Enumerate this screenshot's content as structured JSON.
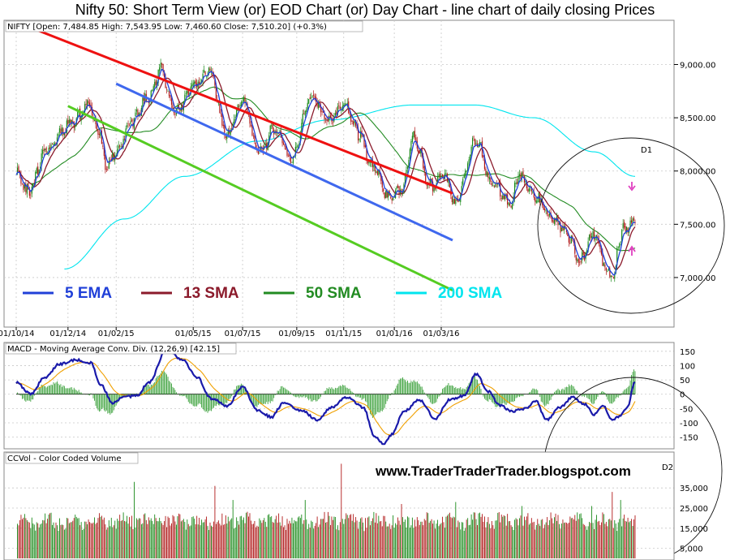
{
  "page_title": "Nifty 50: Short Term View (or) EOD Chart (or) Day Chart - line chart of daily closing Prices",
  "watermark": "www.TraderTraderTrader.blogspot.com",
  "colors": {
    "ema5": "#2040d8",
    "sma13": "#8b1a2b",
    "sma50": "#228b22",
    "sma200": "#00e5ee",
    "upper_channel": "#ee1111",
    "middle_channel": "#3f68ee",
    "lower_channel": "#55cc22",
    "candle_up": "#1a8a1a",
    "candle_down": "#b01818",
    "macd_line": "#1a1aaa",
    "signal_line": "#f0a000",
    "histogram": "#3aa03a",
    "arrow": "#e040c0"
  },
  "chart_data": [
    {
      "type": "candlestick",
      "title": "NIFTY [Open: 7,484.85 High: 7,543.95 Low: 7,460.60 Close: 7,510.20] (+0.3%)",
      "x_ticks": [
        "01/10/14",
        "01/12/14",
        "01/02/15",
        "01/05/15",
        "01/07/15",
        "01/09/15",
        "01/11/15",
        "01/01/16",
        "01/03/16"
      ],
      "y_ticks": [
        "9,000.00",
        "8,500.00",
        "8,000.00",
        "7,500.00",
        "7,000.00"
      ],
      "ylim": [
        6550,
        9400
      ],
      "legend": [
        {
          "label": "5 EMA",
          "color": "#2040d8"
        },
        {
          "label": "13 SMA",
          "color": "#8b1a2b"
        },
        {
          "label": "50 SMA",
          "color": "#228b22"
        },
        {
          "label": "200 SMA",
          "color": "#00e5ee"
        }
      ],
      "annotations": [
        "D1"
      ],
      "keypoints": [
        [
          0,
          7980
        ],
        [
          10,
          7800
        ],
        [
          25,
          8200
        ],
        [
          45,
          8450
        ],
        [
          60,
          8620
        ],
        [
          68,
          8380
        ],
        [
          75,
          8050
        ],
        [
          82,
          8150
        ],
        [
          95,
          8450
        ],
        [
          110,
          8700
        ],
        [
          120,
          8950
        ],
        [
          132,
          8550
        ],
        [
          148,
          8800
        ],
        [
          160,
          8950
        ],
        [
          175,
          8350
        ],
        [
          188,
          8650
        ],
        [
          202,
          8180
        ],
        [
          215,
          8400
        ],
        [
          228,
          8100
        ],
        [
          245,
          8700
        ],
        [
          260,
          8450
        ],
        [
          272,
          8650
        ],
        [
          285,
          8350
        ],
        [
          295,
          8050
        ],
        [
          310,
          7750
        ],
        [
          320,
          7820
        ],
        [
          330,
          8300
        ],
        [
          345,
          7850
        ],
        [
          355,
          7950
        ],
        [
          365,
          7700
        ],
        [
          382,
          8280
        ],
        [
          395,
          7900
        ],
        [
          410,
          7700
        ],
        [
          418,
          7950
        ],
        [
          430,
          7760
        ],
        [
          445,
          7550
        ],
        [
          458,
          7400
        ],
        [
          468,
          7150
        ],
        [
          480,
          7420
        ],
        [
          490,
          7080
        ],
        [
          497,
          7000
        ],
        [
          500,
          7350
        ],
        [
          505,
          7450
        ],
        [
          514,
          7520
        ]
      ],
      "channels": {
        "upper": {
          "from": [
            "01/10/14",
            9400
          ],
          "to": [
            "01/03/16",
            7790
          ]
        },
        "middle": {
          "from": [
            "01/02/15",
            8820
          ],
          "to": [
            "01/03/16",
            7350
          ]
        },
        "lower": {
          "from": [
            "01/12/14",
            8610
          ],
          "to": [
            "01/03/16",
            6880
          ]
        }
      }
    },
    {
      "type": "line",
      "title": "MACD - Moving Average Conv. Div. (12,26,9) [42.15]",
      "y_ticks": [
        "150",
        "100",
        "50",
        "0",
        "-50",
        "-100",
        "-150"
      ],
      "ylim": [
        -185,
        175
      ],
      "keypoints": [
        [
          0,
          40
        ],
        [
          12,
          0
        ],
        [
          24,
          60
        ],
        [
          36,
          105
        ],
        [
          50,
          120
        ],
        [
          62,
          110
        ],
        [
          70,
          35
        ],
        [
          80,
          -30
        ],
        [
          90,
          -10
        ],
        [
          100,
          -5
        ],
        [
          110,
          40
        ],
        [
          125,
          155
        ],
        [
          138,
          120
        ],
        [
          150,
          60
        ],
        [
          162,
          -15
        ],
        [
          175,
          -40
        ],
        [
          188,
          25
        ],
        [
          200,
          -55
        ],
        [
          212,
          -80
        ],
        [
          222,
          -30
        ],
        [
          238,
          -60
        ],
        [
          250,
          -90
        ],
        [
          262,
          -45
        ],
        [
          275,
          -10
        ],
        [
          288,
          -45
        ],
        [
          298,
          -150
        ],
        [
          305,
          -175
        ],
        [
          312,
          -140
        ],
        [
          322,
          -60
        ],
        [
          335,
          -20
        ],
        [
          348,
          -85
        ],
        [
          360,
          -20
        ],
        [
          372,
          -5
        ],
        [
          382,
          70
        ],
        [
          392,
          10
        ],
        [
          402,
          -40
        ],
        [
          412,
          -60
        ],
        [
          422,
          -50
        ],
        [
          432,
          -25
        ],
        [
          440,
          -90
        ],
        [
          452,
          -45
        ],
        [
          462,
          -10
        ],
        [
          472,
          -35
        ],
        [
          480,
          -70
        ],
        [
          488,
          -40
        ],
        [
          494,
          -90
        ],
        [
          500,
          -80
        ],
        [
          507,
          -50
        ],
        [
          514,
          42
        ]
      ]
    },
    {
      "type": "bar",
      "title": "CCVol - Color Coded Volume",
      "y_ticks": [
        "35,000",
        "25,000",
        "15,000",
        "5,000"
      ],
      "ylim": [
        0,
        52000
      ],
      "annotations": [
        "D2"
      ],
      "spikes": [
        [
          98,
          38000
        ],
        [
          165,
          36000
        ],
        [
          180,
          29000
        ],
        [
          270,
          47000
        ],
        [
          240,
          29000
        ],
        [
          320,
          27000
        ],
        [
          365,
          28000
        ],
        [
          420,
          26000
        ],
        [
          478,
          26000
        ],
        [
          495,
          33000
        ],
        [
          502,
          29000
        ]
      ]
    }
  ]
}
